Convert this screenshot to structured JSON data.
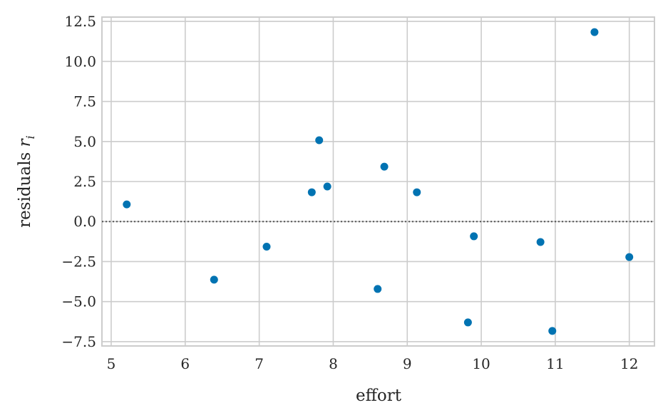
{
  "chart_data": {
    "type": "scatter",
    "xlabel": "effort",
    "ylabel": "residuals",
    "ylabel_var": "r",
    "ylabel_sub": "i",
    "x": [
      5.21,
      6.39,
      7.1,
      7.71,
      7.81,
      7.92,
      8.6,
      8.69,
      9.13,
      9.82,
      9.9,
      10.8,
      10.96,
      11.53,
      12.0
    ],
    "series": [
      {
        "color": "#0173b2",
        "values": [
          1.07,
          -3.63,
          -1.57,
          1.83,
          5.08,
          2.19,
          -4.21,
          3.43,
          1.83,
          -6.3,
          -0.92,
          -1.28,
          -6.83,
          11.83,
          -2.22
        ]
      }
    ],
    "xlim": [
      4.875,
      12.34
    ],
    "ylim": [
      -7.77,
      12.77
    ],
    "xticks": [
      5,
      6,
      7,
      8,
      9,
      10,
      11,
      12
    ],
    "yticks": [
      {
        "value": -7.5,
        "label": "−7.5"
      },
      {
        "value": -5,
        "label": "−5.0"
      },
      {
        "value": -2.5,
        "label": "−2.5"
      },
      {
        "value": 0,
        "label": "0.0"
      },
      2.5,
      {
        "value": 5,
        "label": "5.0"
      },
      7.5,
      {
        "value": 10,
        "label": "10.0"
      },
      12.5
    ],
    "hline": 0,
    "grid": true
  }
}
